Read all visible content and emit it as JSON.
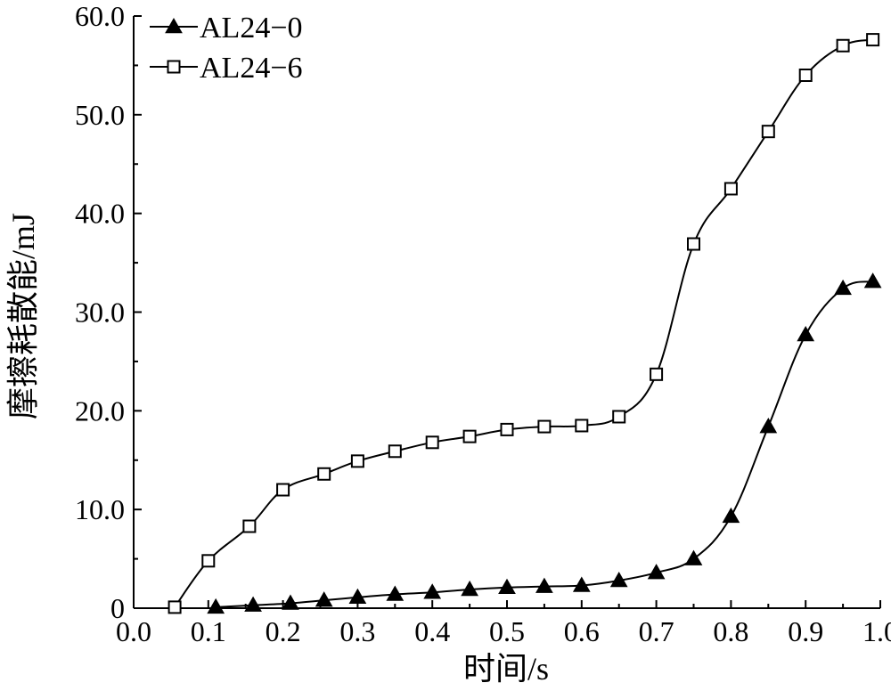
{
  "chart_data": {
    "type": "line",
    "xlabel": "时间/s",
    "ylabel": "摩擦耗散能/mJ",
    "xlim": [
      0.0,
      1.0
    ],
    "ylim": [
      0.0,
      60.0
    ],
    "xticks": [
      "0.0",
      "0.1",
      "0.2",
      "0.3",
      "0.4",
      "0.5",
      "0.6",
      "0.7",
      "0.8",
      "0.9",
      "1.0"
    ],
    "yticks": [
      "0",
      "10.0",
      "20.0",
      "30.0",
      "40.0",
      "50.0",
      "60.0"
    ],
    "grid": false,
    "legend_position": "top-left",
    "series": [
      {
        "name": "AL24−0",
        "marker": "filled-triangle",
        "color": "#000000",
        "x": [
          0.11,
          0.16,
          0.21,
          0.255,
          0.3,
          0.35,
          0.4,
          0.45,
          0.5,
          0.55,
          0.6,
          0.65,
          0.7,
          0.75,
          0.8,
          0.85,
          0.9,
          0.95,
          0.99
        ],
        "y": [
          0.1,
          0.3,
          0.5,
          0.8,
          1.1,
          1.4,
          1.6,
          1.9,
          2.1,
          2.2,
          2.3,
          2.8,
          3.6,
          5.0,
          9.3,
          18.4,
          27.7,
          32.4,
          33.1
        ]
      },
      {
        "name": "AL24−6",
        "marker": "open-square",
        "color": "#000000",
        "x": [
          0.055,
          0.1,
          0.155,
          0.2,
          0.255,
          0.3,
          0.35,
          0.4,
          0.45,
          0.5,
          0.55,
          0.6,
          0.65,
          0.7,
          0.75,
          0.8,
          0.85,
          0.9,
          0.95,
          0.99
        ],
        "y": [
          0.1,
          4.8,
          8.3,
          12.0,
          13.6,
          14.9,
          15.9,
          16.8,
          17.4,
          18.1,
          18.4,
          18.5,
          19.4,
          23.7,
          36.9,
          42.5,
          48.3,
          54.0,
          57.0,
          57.6
        ]
      }
    ]
  }
}
